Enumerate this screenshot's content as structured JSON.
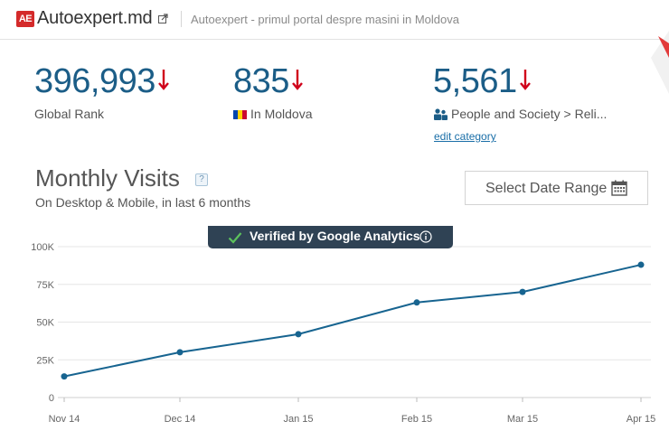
{
  "header": {
    "logo_text": "AE",
    "site_name": "Autoexpert.md",
    "description": "Autoexpert - primul portal despre masini in Moldova"
  },
  "ranks": {
    "global": {
      "value": "396,993",
      "label": "Global Rank"
    },
    "country": {
      "value": "835",
      "label": "In Moldova"
    },
    "category": {
      "value": "5,561",
      "label": "People and Society > Reli...",
      "edit_link": "edit category"
    }
  },
  "monthly_visits": {
    "title": "Monthly Visits",
    "help": "?",
    "subtitle": "On Desktop & Mobile, in last 6 months",
    "date_button": "Select Date Range",
    "verified_badge": "Verified by Google Analytics"
  },
  "colors": {
    "rank_value": "#1b5d87",
    "rank_down_arrow": "#d0021b",
    "series_line": "#176490",
    "verified_bg": "#2f4254",
    "verified_check": "#5cc15c"
  },
  "chart_data": {
    "type": "line",
    "x": [
      "Nov 14",
      "Dec 14",
      "Jan 15",
      "Feb 15",
      "Mar 15",
      "Apr 15"
    ],
    "series": [
      {
        "values": [
          14000,
          30000,
          42000,
          63000,
          70000,
          88000
        ]
      }
    ],
    "y_ticks": [
      "0",
      "25K",
      "50K",
      "75K",
      "100K"
    ],
    "ylim": [
      0,
      100000
    ],
    "grid": true,
    "legend": "none"
  }
}
